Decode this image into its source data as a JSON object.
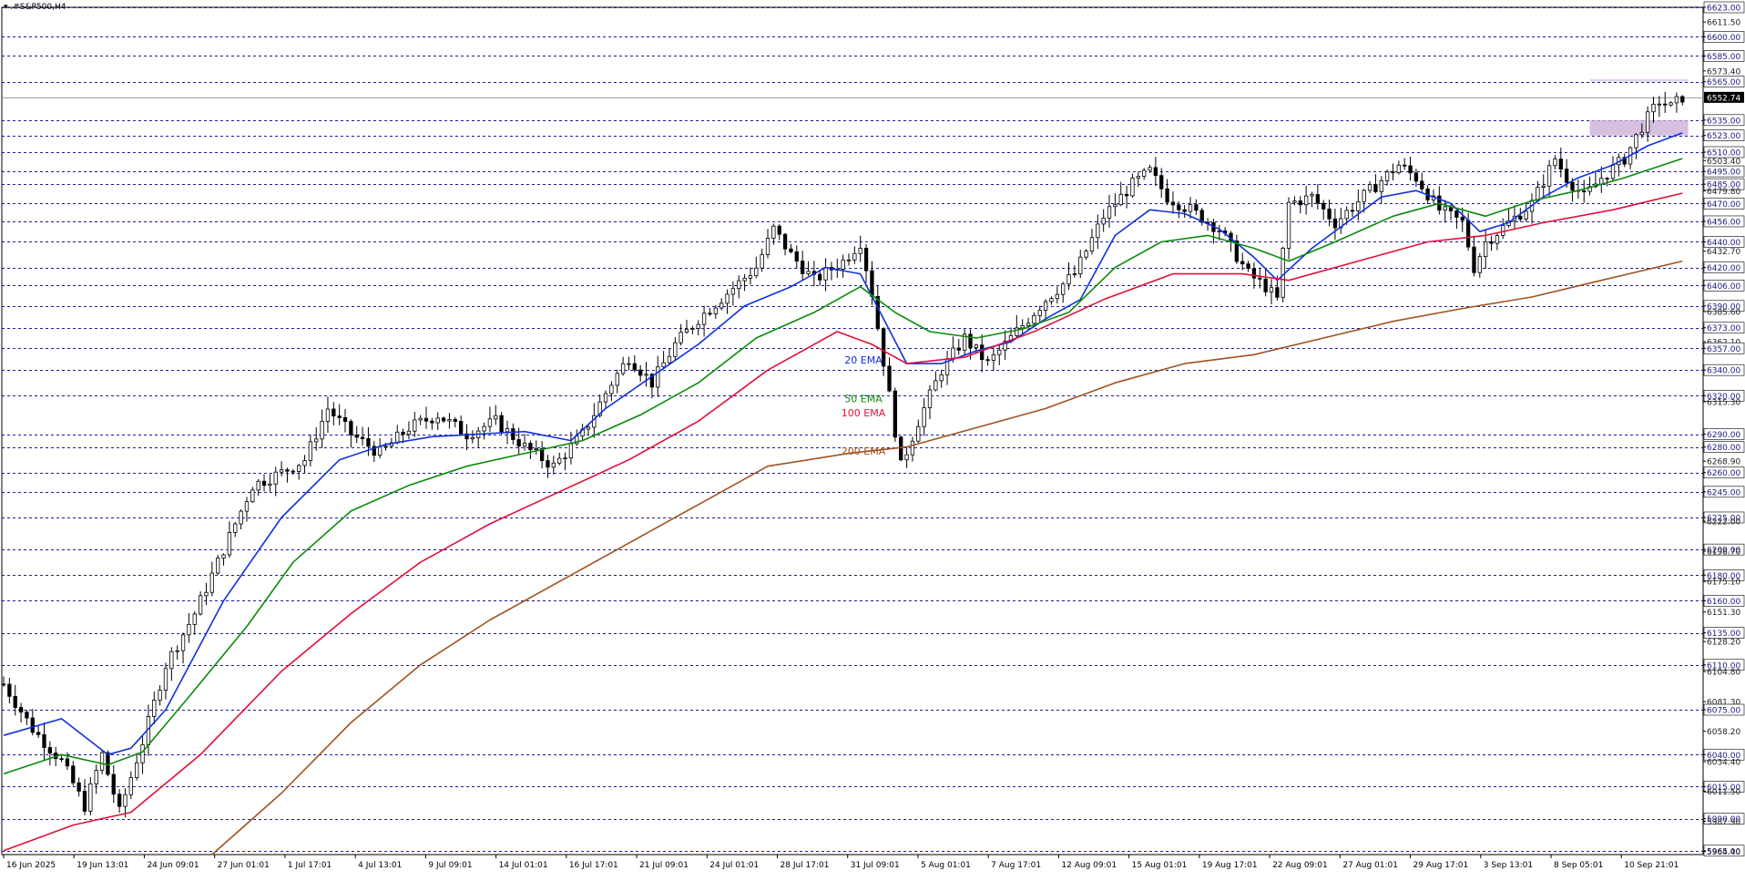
{
  "window": {
    "title": "▾ .#S&P500,H4"
  },
  "annotations": {
    "ema20": "20 EMA",
    "ema50": "50 EMA",
    "ema100": "100 EMA",
    "ema200": "200 EMA"
  },
  "colors": {
    "background": "#ffffff",
    "grid": "#1a1aa0",
    "candle": "#000000",
    "ema20": "#1030e0",
    "ema50": "#0a8a0a",
    "ema100": "#e0103a",
    "ema200": "#a0521e",
    "zone": "#c9a9d6",
    "price_box": "#000000"
  },
  "chart_data": {
    "type": "candlestick",
    "symbol": ".#S&P500",
    "timeframe": "H4",
    "ylim": [
      5962.0,
      6623.0
    ],
    "last_price": "6552.74",
    "y_axis_labels": [
      {
        "v": 6623.0,
        "boxed": true
      },
      {
        "v": 6611.5,
        "boxed": false
      },
      {
        "v": 6600.0,
        "boxed": true
      },
      {
        "v": 6585.0,
        "boxed": true
      },
      {
        "v": 6573.4,
        "boxed": false
      },
      {
        "v": 6565.0,
        "boxed": true
      },
      {
        "v": 6552.74,
        "boxed": true,
        "current": true
      },
      {
        "v": 6535.0,
        "boxed": true
      },
      {
        "v": 6523.0,
        "boxed": true
      },
      {
        "v": 6510.0,
        "boxed": true
      },
      {
        "v": 6503.4,
        "boxed": false
      },
      {
        "v": 6495.0,
        "boxed": true
      },
      {
        "v": 6485.0,
        "boxed": true
      },
      {
        "v": 6479.8,
        "boxed": false
      },
      {
        "v": 6470.0,
        "boxed": true
      },
      {
        "v": 6456.0,
        "boxed": true
      },
      {
        "v": 6440.0,
        "boxed": true
      },
      {
        "v": 6432.7,
        "boxed": false
      },
      {
        "v": 6420.0,
        "boxed": true
      },
      {
        "v": 6406.0,
        "boxed": true
      },
      {
        "v": 6390.0,
        "boxed": true
      },
      {
        "v": 6385.6,
        "boxed": false
      },
      {
        "v": 6373.0,
        "boxed": true
      },
      {
        "v": 6362.1,
        "boxed": false
      },
      {
        "v": 6357.0,
        "boxed": true
      },
      {
        "v": 6340.0,
        "boxed": true
      },
      {
        "v": 6320.0,
        "boxed": true
      },
      {
        "v": 6315.3,
        "boxed": false
      },
      {
        "v": 6290.0,
        "boxed": true
      },
      {
        "v": 6280.0,
        "boxed": true
      },
      {
        "v": 6268.9,
        "boxed": false
      },
      {
        "v": 6260.0,
        "boxed": true
      },
      {
        "v": 6245.0,
        "boxed": true
      },
      {
        "v": 6225.0,
        "boxed": true
      },
      {
        "v": 6222.0,
        "boxed": false
      },
      {
        "v": 6200.0,
        "boxed": true
      },
      {
        "v": 6198.7,
        "boxed": false
      },
      {
        "v": 6180.0,
        "boxed": true
      },
      {
        "v": 6175.1,
        "boxed": false
      },
      {
        "v": 6160.0,
        "boxed": true
      },
      {
        "v": 6151.3,
        "boxed": false
      },
      {
        "v": 6135.0,
        "boxed": true
      },
      {
        "v": 6128.2,
        "boxed": false
      },
      {
        "v": 6110.0,
        "boxed": true
      },
      {
        "v": 6104.8,
        "boxed": false
      },
      {
        "v": 6081.3,
        "boxed": false
      },
      {
        "v": 6075.0,
        "boxed": true
      },
      {
        "v": 6058.2,
        "boxed": false
      },
      {
        "v": 6040.0,
        "boxed": true
      },
      {
        "v": 6034.4,
        "boxed": false
      },
      {
        "v": 6015.0,
        "boxed": true
      },
      {
        "v": 6011.5,
        "boxed": false
      },
      {
        "v": 5990.0,
        "boxed": true
      },
      {
        "v": 5987.9,
        "boxed": false
      },
      {
        "v": 5965.0,
        "boxed": true
      },
      {
        "v": 5964.4,
        "boxed": false
      }
    ],
    "x_labels": [
      "16 Jun 2025",
      "19 Jun 13:01",
      "24 Jun 09:01",
      "27 Jun 01:01",
      "1 Jul 17:01",
      "4 Jul 13:01",
      "9 Jul 09:01",
      "14 Jul 01:01",
      "16 Jul 17:01",
      "21 Jul 09:01",
      "24 Jul 01:01",
      "28 Jul 17:01",
      "31 Jul 09:01",
      "5 Aug 01:01",
      "7 Aug 17:01",
      "12 Aug 09:01",
      "15 Aug 01:01",
      "19 Aug 17:01",
      "22 Aug 09:01",
      "27 Aug 01:01",
      "29 Aug 17:01",
      "3 Sep 13:01",
      "8 Sep 05:01",
      "10 Sep 21:01"
    ],
    "price_path": [
      [
        0,
        6095
      ],
      [
        5,
        6060
      ],
      [
        10,
        6035
      ],
      [
        14,
        6000
      ],
      [
        17,
        6040
      ],
      [
        20,
        5995
      ],
      [
        24,
        6050
      ],
      [
        28,
        6110
      ],
      [
        33,
        6150
      ],
      [
        38,
        6200
      ],
      [
        43,
        6250
      ],
      [
        48,
        6260
      ],
      [
        52,
        6270
      ],
      [
        56,
        6310
      ],
      [
        60,
        6290
      ],
      [
        65,
        6275
      ],
      [
        70,
        6295
      ],
      [
        75,
        6305
      ],
      [
        80,
        6290
      ],
      [
        85,
        6300
      ],
      [
        90,
        6280
      ],
      [
        95,
        6265
      ],
      [
        100,
        6290
      ],
      [
        105,
        6330
      ],
      [
        108,
        6350
      ],
      [
        112,
        6330
      ],
      [
        116,
        6360
      ],
      [
        120,
        6380
      ],
      [
        125,
        6400
      ],
      [
        130,
        6420
      ],
      [
        133,
        6450
      ],
      [
        136,
        6430
      ],
      [
        140,
        6410
      ],
      [
        145,
        6425
      ],
      [
        148,
        6440
      ],
      [
        150,
        6400
      ],
      [
        153,
        6320
      ],
      [
        155,
        6265
      ],
      [
        158,
        6300
      ],
      [
        162,
        6340
      ],
      [
        166,
        6365
      ],
      [
        170,
        6345
      ],
      [
        175,
        6370
      ],
      [
        180,
        6395
      ],
      [
        185,
        6415
      ],
      [
        190,
        6460
      ],
      [
        195,
        6485
      ],
      [
        198,
        6495
      ],
      [
        201,
        6475
      ],
      [
        205,
        6465
      ],
      [
        210,
        6450
      ],
      [
        215,
        6415
      ],
      [
        218,
        6405
      ],
      [
        220,
        6395
      ],
      [
        222,
        6470
      ],
      [
        226,
        6475
      ],
      [
        230,
        6455
      ],
      [
        236,
        6480
      ],
      [
        241,
        6500
      ],
      [
        244,
        6490
      ],
      [
        248,
        6465
      ],
      [
        252,
        6455
      ],
      [
        254,
        6420
      ],
      [
        256,
        6440
      ],
      [
        260,
        6455
      ],
      [
        264,
        6470
      ],
      [
        268,
        6505
      ],
      [
        270,
        6490
      ],
      [
        273,
        6475
      ],
      [
        276,
        6490
      ],
      [
        280,
        6505
      ],
      [
        283,
        6530
      ],
      [
        286,
        6550
      ],
      [
        288,
        6545
      ],
      [
        290,
        6553
      ]
    ],
    "series": [
      {
        "name": "20 EMA",
        "line": [
          [
            0,
            6055
          ],
          [
            10,
            6068
          ],
          [
            18,
            6040
          ],
          [
            22,
            6045
          ],
          [
            28,
            6075
          ],
          [
            38,
            6160
          ],
          [
            48,
            6225
          ],
          [
            58,
            6270
          ],
          [
            66,
            6282
          ],
          [
            74,
            6288
          ],
          [
            82,
            6290
          ],
          [
            90,
            6292
          ],
          [
            98,
            6285
          ],
          [
            104,
            6310
          ],
          [
            112,
            6335
          ],
          [
            120,
            6360
          ],
          [
            128,
            6390
          ],
          [
            136,
            6405
          ],
          [
            142,
            6420
          ],
          [
            148,
            6415
          ],
          [
            152,
            6380
          ],
          [
            156,
            6345
          ],
          [
            162,
            6345
          ],
          [
            168,
            6355
          ],
          [
            174,
            6362
          ],
          [
            180,
            6380
          ],
          [
            186,
            6395
          ],
          [
            192,
            6445
          ],
          [
            198,
            6465
          ],
          [
            204,
            6462
          ],
          [
            210,
            6450
          ],
          [
            216,
            6428
          ],
          [
            220,
            6410
          ],
          [
            226,
            6435
          ],
          [
            232,
            6455
          ],
          [
            238,
            6475
          ],
          [
            244,
            6480
          ],
          [
            250,
            6470
          ],
          [
            255,
            6448
          ],
          [
            260,
            6455
          ],
          [
            266,
            6475
          ],
          [
            272,
            6490
          ],
          [
            278,
            6500
          ],
          [
            284,
            6515
          ],
          [
            290,
            6525
          ]
        ]
      },
      {
        "name": "50 EMA",
        "line": [
          [
            0,
            6025
          ],
          [
            10,
            6040
          ],
          [
            18,
            6032
          ],
          [
            24,
            6042
          ],
          [
            32,
            6085
          ],
          [
            42,
            6140
          ],
          [
            50,
            6190
          ],
          [
            60,
            6230
          ],
          [
            70,
            6250
          ],
          [
            80,
            6265
          ],
          [
            90,
            6275
          ],
          [
            100,
            6285
          ],
          [
            110,
            6305
          ],
          [
            120,
            6330
          ],
          [
            130,
            6365
          ],
          [
            140,
            6385
          ],
          [
            148,
            6405
          ],
          [
            154,
            6385
          ],
          [
            160,
            6370
          ],
          [
            168,
            6365
          ],
          [
            176,
            6372
          ],
          [
            184,
            6385
          ],
          [
            192,
            6420
          ],
          [
            200,
            6440
          ],
          [
            208,
            6445
          ],
          [
            216,
            6435
          ],
          [
            222,
            6425
          ],
          [
            230,
            6440
          ],
          [
            240,
            6460
          ],
          [
            248,
            6470
          ],
          [
            256,
            6460
          ],
          [
            264,
            6472
          ],
          [
            272,
            6480
          ],
          [
            280,
            6490
          ],
          [
            290,
            6505
          ]
        ]
      },
      {
        "name": "100 EMA",
        "line": [
          [
            0,
            5965
          ],
          [
            12,
            5985
          ],
          [
            22,
            5995
          ],
          [
            34,
            6040
          ],
          [
            48,
            6105
          ],
          [
            60,
            6150
          ],
          [
            72,
            6190
          ],
          [
            84,
            6220
          ],
          [
            96,
            6245
          ],
          [
            108,
            6270
          ],
          [
            120,
            6300
          ],
          [
            132,
            6340
          ],
          [
            144,
            6370
          ],
          [
            150,
            6360
          ],
          [
            156,
            6345
          ],
          [
            166,
            6350
          ],
          [
            178,
            6370
          ],
          [
            190,
            6395
          ],
          [
            202,
            6415
          ],
          [
            214,
            6415
          ],
          [
            222,
            6410
          ],
          [
            234,
            6425
          ],
          [
            246,
            6440
          ],
          [
            256,
            6445
          ],
          [
            266,
            6455
          ],
          [
            278,
            6465
          ],
          [
            290,
            6478
          ]
        ]
      },
      {
        "name": "200 EMA",
        "line": [
          [
            36,
            5962
          ],
          [
            48,
            6010
          ],
          [
            60,
            6065
          ],
          [
            72,
            6110
          ],
          [
            84,
            6145
          ],
          [
            96,
            6175
          ],
          [
            108,
            6205
          ],
          [
            120,
            6235
          ],
          [
            132,
            6265
          ],
          [
            146,
            6275
          ],
          [
            156,
            6280
          ],
          [
            168,
            6295
          ],
          [
            180,
            6310
          ],
          [
            192,
            6330
          ],
          [
            204,
            6345
          ],
          [
            216,
            6352
          ],
          [
            228,
            6365
          ],
          [
            240,
            6378
          ],
          [
            252,
            6388
          ],
          [
            264,
            6397
          ],
          [
            276,
            6410
          ],
          [
            290,
            6425
          ]
        ]
      }
    ],
    "zones": [
      {
        "from": 6523,
        "to": 6535
      },
      {
        "from": 6565,
        "to": 6567
      }
    ],
    "xlabel": "",
    "ylabel": ""
  }
}
